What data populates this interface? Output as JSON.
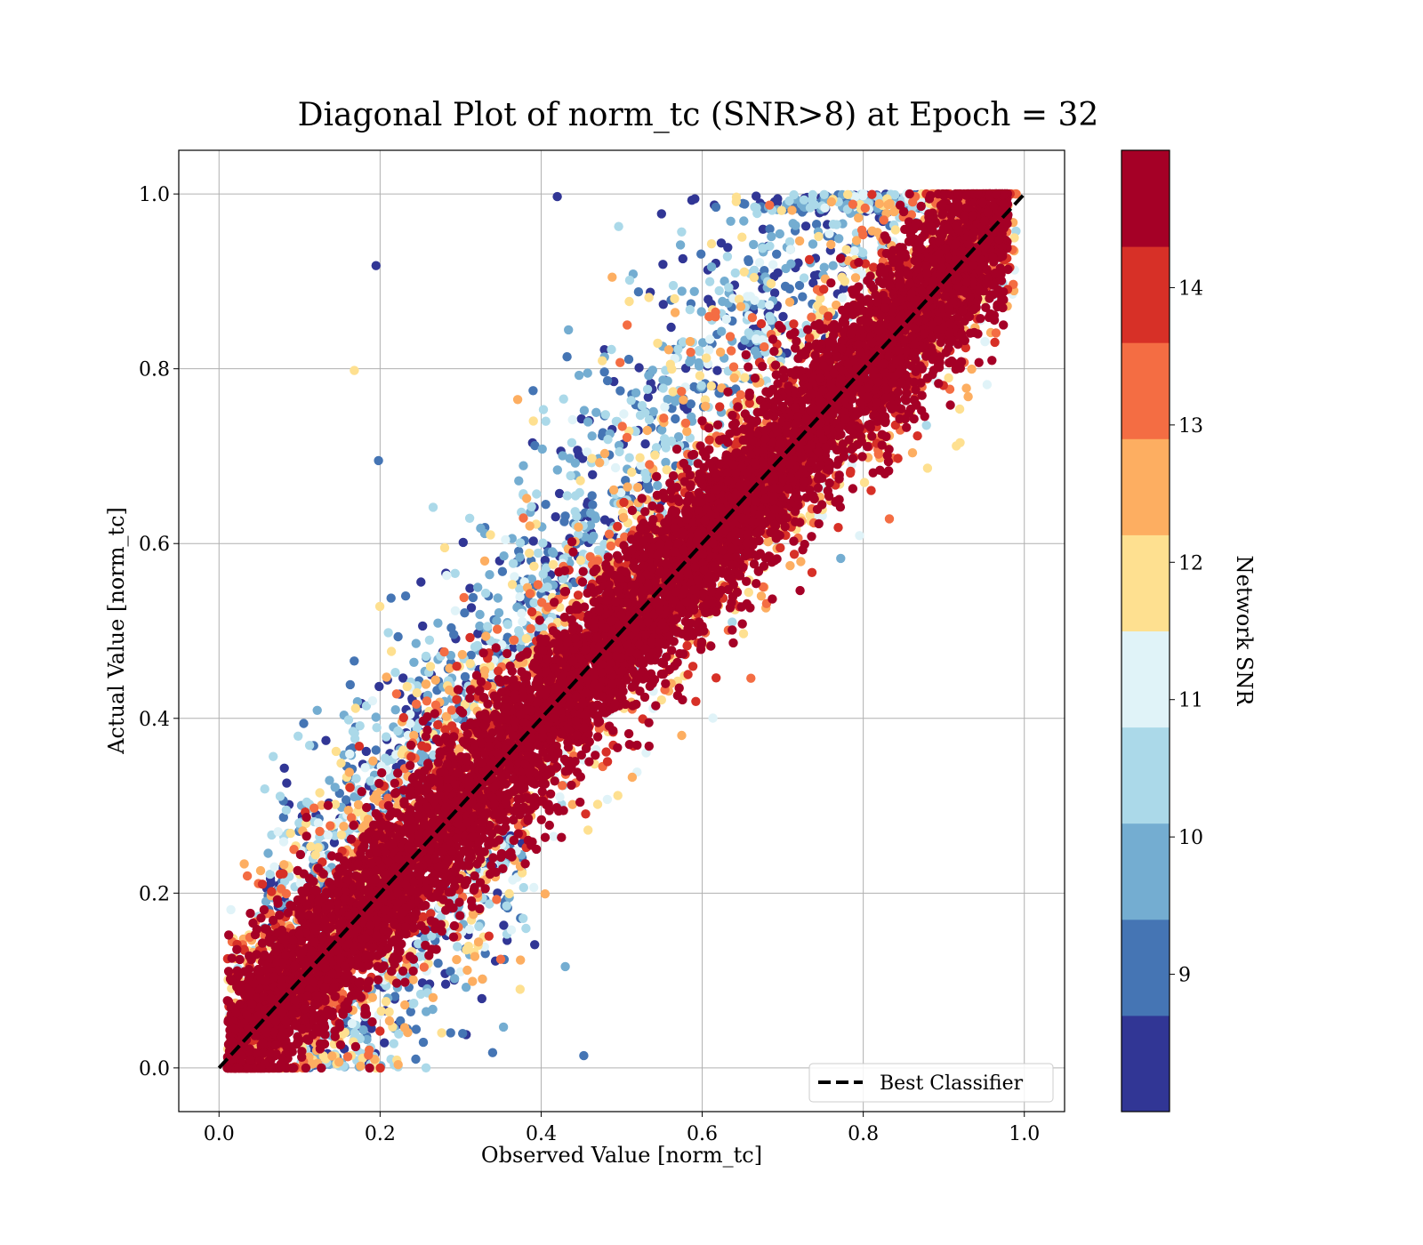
{
  "chart_data": {
    "type": "scatter",
    "title": "Diagonal Plot of norm_tc (SNR>8) at Epoch = 32",
    "xlabel": "Observed Value [norm_tc]",
    "ylabel": "Actual Value [norm_tc]",
    "xlim": [
      -0.05,
      1.05
    ],
    "ylim": [
      -0.05,
      1.05
    ],
    "xticks": [
      "0.0",
      "0.2",
      "0.4",
      "0.6",
      "0.8",
      "1.0"
    ],
    "yticks": [
      "0.0",
      "0.2",
      "0.4",
      "0.6",
      "0.8",
      "1.0"
    ],
    "grid": true,
    "point_color_variable": "Network SNR",
    "points_note": "Dense cloud of many thousands of points concentrated along the diagonal; high-SNR points (dark red) hug the diagonal, low-SNR points (blue) scatter mostly above it.",
    "reference_line": {
      "name": "Best Classifier",
      "style": "dashed",
      "color": "#000000",
      "points": [
        [
          0.0,
          0.0
        ],
        [
          1.0,
          1.0
        ]
      ]
    },
    "legend": {
      "placement": "lower-right",
      "entries": [
        "Best Classifier"
      ]
    },
    "colorbar": {
      "label": "Network SNR",
      "range": [
        8,
        15
      ],
      "ticks": [
        "9",
        "10",
        "11",
        "12",
        "13",
        "14"
      ],
      "tick_values": [
        9,
        10,
        11,
        12,
        13,
        14
      ],
      "bins": [
        {
          "from": 8.0,
          "to": 8.7,
          "color": "#313695"
        },
        {
          "from": 8.7,
          "to": 9.4,
          "color": "#4575b4"
        },
        {
          "from": 9.4,
          "to": 10.1,
          "color": "#74add1"
        },
        {
          "from": 10.1,
          "to": 10.8,
          "color": "#abd9e9"
        },
        {
          "from": 10.8,
          "to": 11.5,
          "color": "#e0f3f8"
        },
        {
          "from": 11.5,
          "to": 12.2,
          "color": "#fee090"
        },
        {
          "from": 12.2,
          "to": 12.9,
          "color": "#fdae61"
        },
        {
          "from": 12.9,
          "to": 13.6,
          "color": "#f46d43"
        },
        {
          "from": 13.6,
          "to": 14.3,
          "color": "#d73027"
        },
        {
          "from": 14.3,
          "to": 15.0,
          "color": "#a50026"
        }
      ]
    }
  }
}
